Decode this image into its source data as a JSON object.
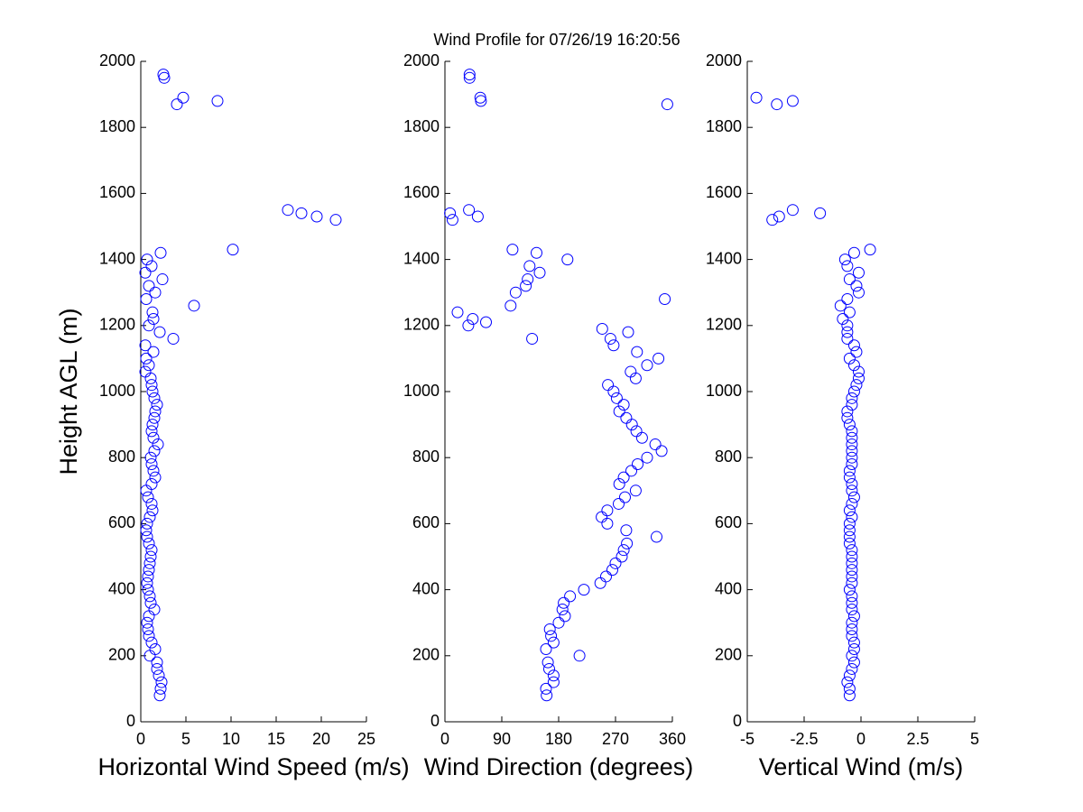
{
  "title": "Wind Profile for  07/26/19 16:20:56",
  "chart_data": [
    {
      "type": "scatter",
      "xlabel": "Horizontal Wind Speed (m/s)",
      "ylabel": "Height AGL (m)",
      "color": "#0000ff",
      "xlim": [
        0,
        25
      ],
      "xticks": [
        0,
        5,
        10,
        15,
        20,
        25
      ],
      "ylim": [
        0,
        2000
      ],
      "yticks": [
        0,
        200,
        400,
        600,
        800,
        1000,
        1200,
        1400,
        1600,
        1800,
        2000
      ],
      "x": [
        2.1,
        2.2,
        2.3,
        2.0,
        1.8,
        1.8,
        1.0,
        1.6,
        1.2,
        0.9,
        0.8,
        0.7,
        0.9,
        1.5,
        1.1,
        1.0,
        0.8,
        0.7,
        0.8,
        0.9,
        1.0,
        1.1,
        1.2,
        0.9,
        0.7,
        0.6,
        0.7,
        1.0,
        1.3,
        1.2,
        0.8,
        0.6,
        1.2,
        1.6,
        1.4,
        1.2,
        1.1,
        1.5,
        1.9,
        1.4,
        1.2,
        1.3,
        1.5,
        1.6,
        1.8,
        1.5,
        1.3,
        1.2,
        1.1,
        0.5,
        0.9,
        0.6,
        1.4,
        0.5,
        3.6,
        2.1,
        0.9,
        1.4,
        1.3,
        5.9,
        0.6,
        1.6,
        0.9,
        2.4,
        0.5,
        1.2,
        0.7,
        2.2,
        10.2,
        21.6,
        19.5,
        17.8,
        16.3,
        4.0,
        8.5,
        4.7,
        2.6,
        2.5
      ],
      "y": [
        80,
        100,
        120,
        140,
        160,
        180,
        200,
        220,
        240,
        260,
        280,
        300,
        320,
        340,
        360,
        380,
        400,
        420,
        440,
        460,
        480,
        500,
        520,
        540,
        560,
        580,
        600,
        620,
        640,
        660,
        680,
        700,
        720,
        740,
        760,
        780,
        800,
        820,
        840,
        860,
        880,
        900,
        920,
        940,
        960,
        980,
        1000,
        1020,
        1040,
        1060,
        1080,
        1100,
        1120,
        1140,
        1160,
        1180,
        1200,
        1220,
        1240,
        1260,
        1280,
        1300,
        1320,
        1340,
        1360,
        1380,
        1400,
        1420,
        1430,
        1520,
        1530,
        1540,
        1550,
        1870,
        1880,
        1890,
        1950,
        1960
      ]
    },
    {
      "type": "scatter",
      "xlabel": "Wind Direction (degrees)",
      "color": "#0000ff",
      "xlim": [
        0,
        360
      ],
      "xticks": [
        0,
        90,
        180,
        270,
        360
      ],
      "ylim": [
        0,
        2000
      ],
      "yticks": [
        0,
        200,
        400,
        600,
        800,
        1000,
        1200,
        1400,
        1600,
        1800,
        2000
      ],
      "x": [
        161,
        160,
        172,
        172,
        165,
        163,
        213,
        160,
        172,
        168,
        166,
        180,
        190,
        186,
        188,
        198,
        220,
        246,
        255,
        265,
        270,
        280,
        283,
        288,
        335,
        287,
        257,
        248,
        257,
        275,
        285,
        302,
        276,
        283,
        295,
        305,
        320,
        343,
        333,
        312,
        303,
        296,
        287,
        276,
        283,
        272,
        267,
        258,
        302,
        294,
        320,
        338,
        304,
        267,
        262,
        290,
        37,
        44,
        20,
        104,
        348,
        112,
        128,
        131,
        150,
        134,
        194,
        145,
        138,
        249,
        65,
        107,
        12,
        52,
        8,
        38,
        352,
        57,
        56,
        39,
        39
      ],
      "y": [
        80,
        100,
        120,
        140,
        160,
        180,
        200,
        220,
        240,
        260,
        280,
        300,
        320,
        340,
        360,
        380,
        400,
        420,
        440,
        460,
        480,
        500,
        520,
        540,
        560,
        580,
        600,
        620,
        640,
        660,
        680,
        700,
        720,
        740,
        760,
        780,
        800,
        820,
        840,
        860,
        880,
        900,
        920,
        940,
        960,
        980,
        1000,
        1020,
        1040,
        1060,
        1080,
        1100,
        1120,
        1140,
        1160,
        1180,
        1200,
        1220,
        1240,
        1260,
        1280,
        1300,
        1320,
        1340,
        1360,
        1380,
        1400,
        1420,
        1160,
        1190,
        1210,
        1430,
        1520,
        1530,
        1540,
        1550,
        1870,
        1880,
        1890,
        1950,
        1960
      ]
    },
    {
      "type": "scatter",
      "xlabel": "Vertical Wind (m/s)",
      "color": "#0000ff",
      "xlim": [
        -5,
        5
      ],
      "xticks": [
        -5,
        -2.5,
        0,
        2.5,
        5
      ],
      "ylim": [
        0,
        2000
      ],
      "yticks": [
        0,
        200,
        400,
        600,
        800,
        1000,
        1200,
        1400,
        1600,
        1800,
        2000
      ],
      "x": [
        -0.5,
        -0.5,
        -0.6,
        -0.5,
        -0.4,
        -0.3,
        -0.4,
        -0.3,
        -0.3,
        -0.4,
        -0.4,
        -0.4,
        -0.3,
        -0.4,
        -0.4,
        -0.4,
        -0.5,
        -0.4,
        -0.4,
        -0.4,
        -0.4,
        -0.4,
        -0.4,
        -0.5,
        -0.5,
        -0.5,
        -0.5,
        -0.4,
        -0.5,
        -0.4,
        -0.3,
        -0.4,
        -0.4,
        -0.5,
        -0.5,
        -0.4,
        -0.4,
        -0.4,
        -0.4,
        -0.4,
        -0.4,
        -0.5,
        -0.6,
        -0.6,
        -0.4,
        -0.4,
        -0.3,
        -0.2,
        -0.1,
        -0.1,
        -0.3,
        -0.5,
        -0.2,
        -0.3,
        -0.6,
        -0.6,
        -0.6,
        -0.8,
        -0.5,
        -0.9,
        -0.6,
        -0.1,
        -0.2,
        -0.5,
        -0.1,
        -0.6,
        -0.7,
        -0.3,
        0.4,
        -3.9,
        -3.6,
        -1.8,
        -3.0,
        -3.7,
        -3.0,
        -4.6
      ],
      "y": [
        80,
        100,
        120,
        140,
        160,
        180,
        200,
        220,
        240,
        260,
        280,
        300,
        320,
        340,
        360,
        380,
        400,
        420,
        440,
        460,
        480,
        500,
        520,
        540,
        560,
        580,
        600,
        620,
        640,
        660,
        680,
        700,
        720,
        740,
        760,
        780,
        800,
        820,
        840,
        860,
        880,
        900,
        920,
        940,
        960,
        980,
        1000,
        1020,
        1040,
        1060,
        1080,
        1100,
        1120,
        1140,
        1160,
        1180,
        1200,
        1220,
        1240,
        1260,
        1280,
        1300,
        1320,
        1340,
        1360,
        1380,
        1400,
        1420,
        1430,
        1520,
        1530,
        1540,
        1550,
        1870,
        1880,
        1890
      ]
    }
  ]
}
